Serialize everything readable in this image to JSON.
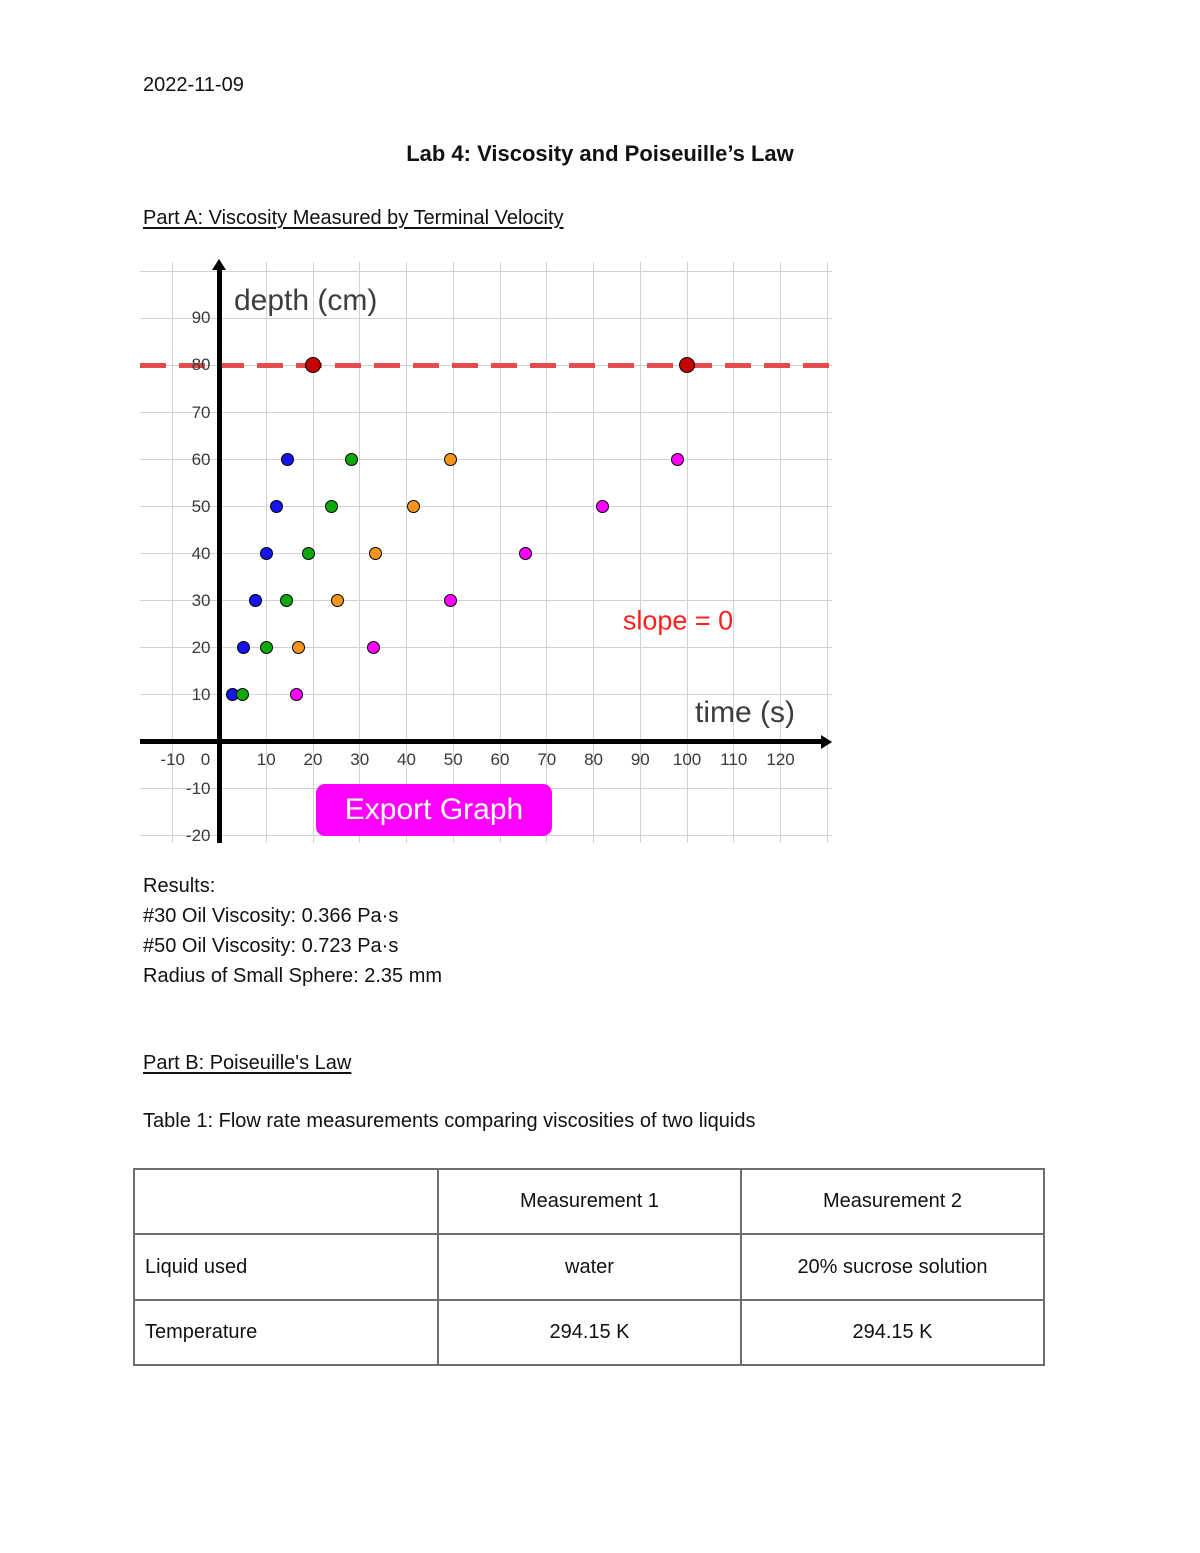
{
  "page": {
    "date": "2022-11-09",
    "title": "Lab 4: Viscosity and Poiseuille’s Law",
    "part_a_heading": "Part A: Viscosity Measured by Terminal Velocity",
    "results": {
      "label": "Results:",
      "lines": [
        "#30 Oil Viscosity: 0.366 Pa·s",
        "#50 Oil Viscosity: 0.723 Pa·s",
        "Radius of Small Sphere: 2.35 mm"
      ]
    },
    "part_b_heading": "Part B: Poiseuille's Law",
    "table_caption": "Table 1: Flow rate measurements comparing viscosities of two liquids"
  },
  "chart_data": {
    "type": "scatter",
    "title": "",
    "xlabel": "time (s)",
    "ylabel": "depth (cm)",
    "xlim": [
      -17,
      131
    ],
    "ylim": [
      -21.5,
      102
    ],
    "grid": true,
    "grid_step": 10,
    "x_ticks": [
      -10,
      0,
      10,
      20,
      30,
      40,
      50,
      60,
      70,
      80,
      90,
      100,
      110,
      120
    ],
    "y_ticks": [
      90,
      80,
      70,
      60,
      50,
      40,
      30,
      20,
      10,
      -10,
      -20
    ],
    "series": [
      {
        "name": "blue-sphere",
        "color": "#1515ec",
        "size": 13,
        "points": [
          [
            2.8,
            10
          ],
          [
            5.2,
            20
          ],
          [
            7.6,
            30
          ],
          [
            10,
            40
          ],
          [
            12.3,
            50
          ],
          [
            14.5,
            60
          ]
        ]
      },
      {
        "name": "green-sphere",
        "color": "#0ca80c",
        "size": 13,
        "points": [
          [
            5,
            10
          ],
          [
            10,
            20
          ],
          [
            14.3,
            30
          ],
          [
            19,
            40
          ],
          [
            24,
            50
          ],
          [
            28.3,
            60
          ]
        ]
      },
      {
        "name": "orange-sphere",
        "color": "#f7941e",
        "size": 13,
        "points": [
          [
            16.8,
            20
          ],
          [
            25.2,
            30
          ],
          [
            33.4,
            40
          ],
          [
            41.5,
            50
          ],
          [
            49.5,
            60
          ]
        ]
      },
      {
        "name": "magenta-sphere",
        "color": "#ff00ff",
        "size": 13,
        "points": [
          [
            16.5,
            10
          ],
          [
            33,
            20
          ],
          [
            49.5,
            30
          ],
          [
            65.5,
            40
          ],
          [
            82,
            50
          ],
          [
            98,
            60
          ]
        ]
      },
      {
        "name": "dark-red-terminal-depth",
        "color": "#c40000",
        "size": 16,
        "points": [
          [
            20,
            80
          ],
          [
            100,
            80
          ]
        ]
      }
    ],
    "reference_line": {
      "y": 80,
      "color": "#e24c4c",
      "style": "dashed"
    },
    "annotation": {
      "text": "slope = 0",
      "color": "#ff1f1f",
      "x": 98,
      "y": 26
    },
    "export_button_label": "Export Graph",
    "legend_position": "none"
  },
  "table": {
    "headers": [
      "",
      "Measurement 1",
      "Measurement 2"
    ],
    "rows": [
      {
        "label": "Liquid used",
        "values": [
          "water",
          "20% sucrose solution"
        ]
      },
      {
        "label": "Temperature",
        "values": [
          "294.15 K",
          "294.15 K"
        ]
      }
    ]
  }
}
